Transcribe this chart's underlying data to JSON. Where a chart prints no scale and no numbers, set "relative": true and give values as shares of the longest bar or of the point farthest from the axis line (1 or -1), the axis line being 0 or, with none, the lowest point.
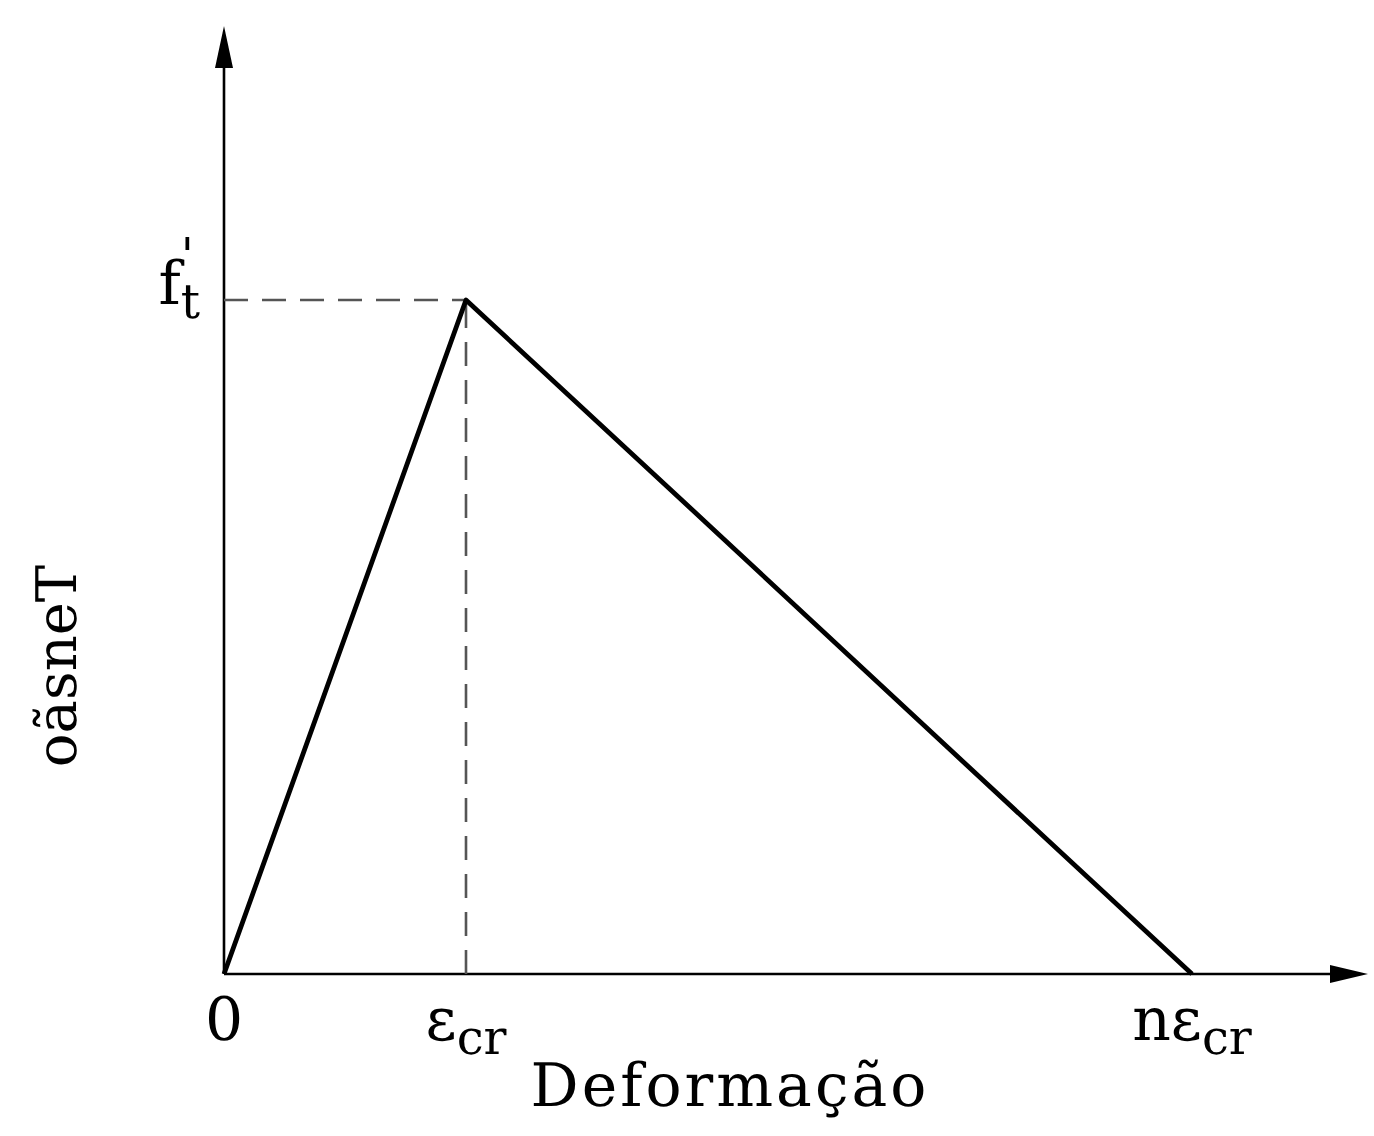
{
  "chart_data": {
    "type": "line",
    "relative": true,
    "xlabel": "Deformação",
    "ylabel": "oãsneT",
    "categories": [
      "0",
      "ε$_{cr}$",
      null,
      null,
      "nε$_{cr}$"
    ],
    "series": [
      {
        "color": "#000000",
        "values": [
          0,
          1,
          0.667,
          0.333,
          0
        ]
      }
    ],
    "ref_lines": [
      {
        "axis": "x",
        "value": "ε$_{cr}$",
        "color": "#555555",
        "line_style": "dashed"
      },
      {
        "axis": "y",
        "value": 1,
        "label": "f$^{'}$$_{t}$",
        "color": "#555555",
        "line_style": "dashed"
      }
    ]
  }
}
